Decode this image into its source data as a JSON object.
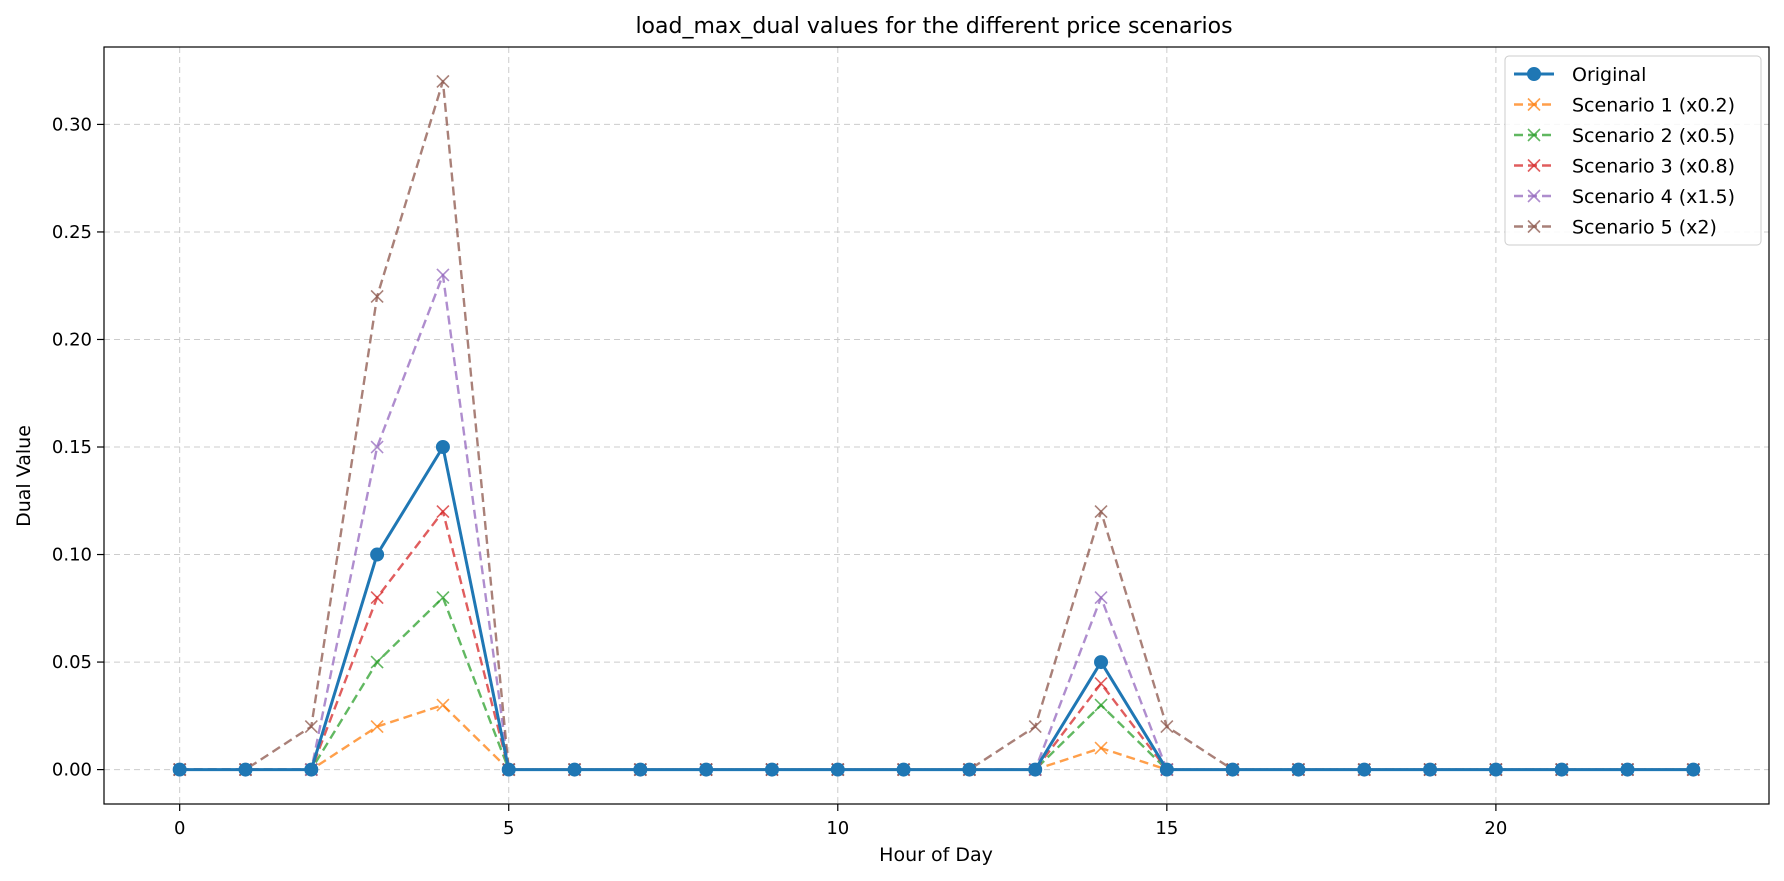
{
  "chart_data": {
    "type": "line",
    "title": "load_max_dual values for the different price scenarios",
    "xlabel": "Hour of Day",
    "ylabel": "Dual Value",
    "x": [
      0,
      1,
      2,
      3,
      4,
      5,
      6,
      7,
      8,
      9,
      10,
      11,
      12,
      13,
      14,
      15,
      16,
      17,
      18,
      19,
      20,
      21,
      22,
      23
    ],
    "xlim": [
      -1.15,
      24.15
    ],
    "ylim": [
      -0.016,
      0.336
    ],
    "xticks": [
      0,
      5,
      10,
      15,
      20
    ],
    "yticks": [
      0.0,
      0.05,
      0.1,
      0.15,
      0.2,
      0.25,
      0.3
    ],
    "xtick_labels": [
      "0",
      "5",
      "10",
      "15",
      "20"
    ],
    "ytick_labels": [
      "0.00",
      "0.05",
      "0.10",
      "0.15",
      "0.20",
      "0.25",
      "0.30"
    ],
    "grid": true,
    "legend_position": "top-right",
    "series": [
      {
        "name": "Original",
        "color": "#1f77b4",
        "style": "solid",
        "marker": "circle",
        "values": [
          0,
          0,
          0,
          0.1,
          0.15,
          0,
          0,
          0,
          0,
          0,
          0,
          0,
          0,
          0,
          0.05,
          0,
          0,
          0,
          0,
          0,
          0,
          0,
          0,
          0
        ]
      },
      {
        "name": "Scenario 1 (x0.2)",
        "color": "#ff7f0e",
        "style": "dashed",
        "marker": "x",
        "values": [
          0,
          0,
          0,
          0.02,
          0.03,
          0,
          0,
          0,
          0,
          0,
          0,
          0,
          0,
          0,
          0.01,
          0,
          0,
          0,
          0,
          0,
          0,
          0,
          0,
          0
        ]
      },
      {
        "name": "Scenario 2 (x0.5)",
        "color": "#2ca02c",
        "style": "dashed",
        "marker": "x",
        "values": [
          0,
          0,
          0,
          0.05,
          0.08,
          0,
          0,
          0,
          0,
          0,
          0,
          0,
          0,
          0,
          0.03,
          0,
          0,
          0,
          0,
          0,
          0,
          0,
          0,
          0
        ]
      },
      {
        "name": "Scenario 3 (x0.8)",
        "color": "#d62728",
        "style": "dashed",
        "marker": "x",
        "values": [
          0,
          0,
          0,
          0.08,
          0.12,
          0,
          0,
          0,
          0,
          0,
          0,
          0,
          0,
          0,
          0.04,
          0,
          0,
          0,
          0,
          0,
          0,
          0,
          0,
          0
        ]
      },
      {
        "name": "Scenario 4 (x1.5)",
        "color": "#9467bd",
        "style": "dashed",
        "marker": "x",
        "values": [
          0,
          0,
          0,
          0.15,
          0.23,
          0,
          0,
          0,
          0,
          0,
          0,
          0,
          0,
          0,
          0.08,
          0,
          0,
          0,
          0,
          0,
          0,
          0,
          0,
          0
        ]
      },
      {
        "name": "Scenario 5 (x2)",
        "color": "#8c564b",
        "style": "dashed",
        "marker": "x",
        "values": [
          0,
          0,
          0.02,
          0.22,
          0.32,
          0,
          0,
          0,
          0,
          0,
          0,
          0,
          0,
          0.02,
          0.12,
          0.02,
          0,
          0,
          0,
          0,
          0,
          0,
          0,
          0
        ]
      }
    ]
  }
}
